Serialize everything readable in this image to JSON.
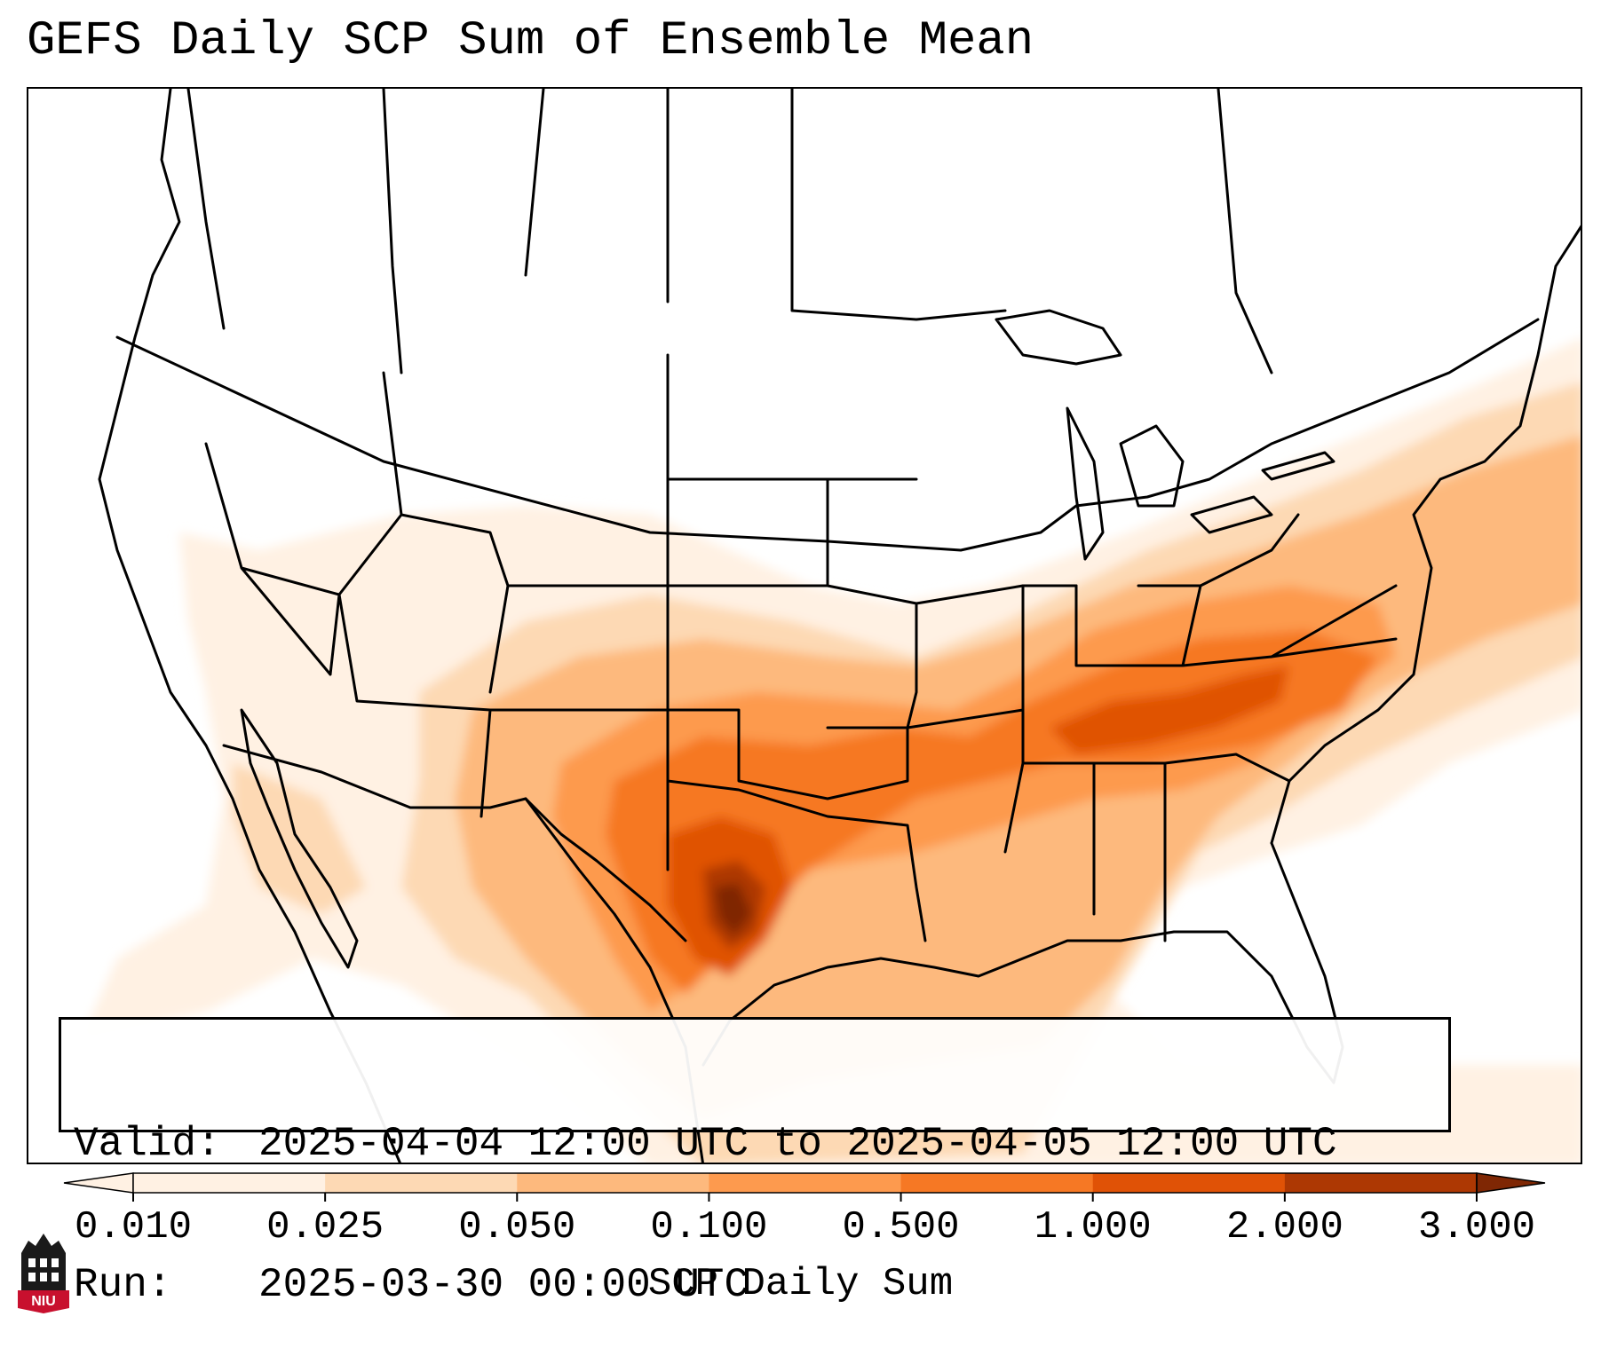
{
  "title": "GEFS Daily SCP Sum of Ensemble Mean",
  "info": {
    "valid_key": "Valid:",
    "valid_value": "2025-04-04 12:00 UTC to 2025-04-05 12:00 UTC",
    "run_key": "Run:",
    "run_value": "2025-03-30 00:00 UTC"
  },
  "colorbar": {
    "label": "SCP Daily Sum",
    "ticks": [
      "0.010",
      "0.025",
      "0.050",
      "0.100",
      "0.500",
      "1.000",
      "2.000",
      "3.000"
    ],
    "colors": [
      "#fff1e3",
      "#fdd9b4",
      "#fdb97d",
      "#fd9a4e",
      "#f67824",
      "#e05206",
      "#ad3803",
      "#7f2704"
    ],
    "extend": "both"
  },
  "map": {
    "region": "Continental United States",
    "projection": "Lambert conformal",
    "shading": "orange sequential, maximum over south-central Texas"
  },
  "logo_text": "NIU",
  "icons": [
    "niu-logo-icon"
  ]
}
